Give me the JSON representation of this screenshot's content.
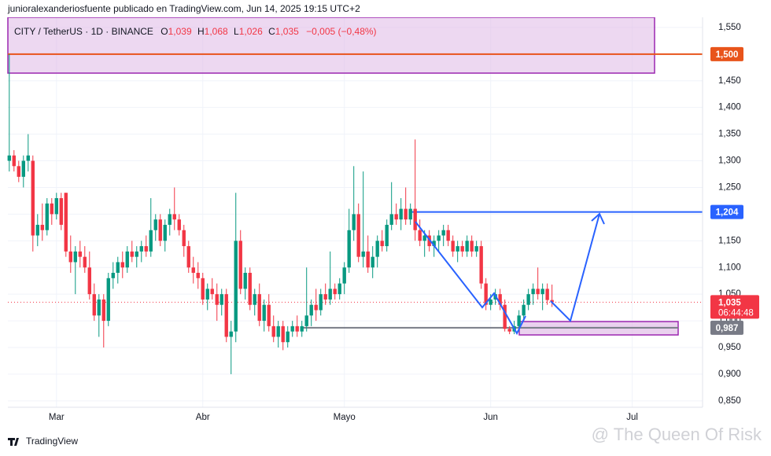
{
  "header": "junioralexanderiosfuente publicado en TradingView.com, Jun 14, 2025 19:15 UTC+2",
  "legend": {
    "symbol": "CITY / TetherUS · 1D · BINANCE",
    "o": "O",
    "o_value": "1,039",
    "h": "H",
    "h_value": "1,068",
    "l": "L",
    "l_value": "1,026",
    "c": "C",
    "c_value": "1,035",
    "change": "−0,005 (−0,48%)"
  },
  "footer": {
    "brand": "TradingView",
    "watermark": "@ The Queen Of Risk"
  },
  "chart_data": {
    "type": "candlestick",
    "up_color": "#089981",
    "down_color": "#f23645",
    "grid": true,
    "xlim": [
      -0.3,
      146.9
    ],
    "xticks": [
      {
        "value": 10,
        "label": "Mar"
      },
      {
        "value": 41,
        "label": "Abr"
      },
      {
        "value": 71,
        "label": "Mayo"
      },
      {
        "value": 102,
        "label": "Jun"
      },
      {
        "value": 132,
        "label": "Jul"
      }
    ],
    "ylim": [
      0.838,
      1.569
    ],
    "yticks": [
      {
        "value": 0.85,
        "label": "0,850"
      },
      {
        "value": 0.9,
        "label": "0,900"
      },
      {
        "value": 0.95,
        "label": "0,950"
      },
      {
        "value": 1.0,
        "label": "1,000"
      },
      {
        "value": 1.05,
        "label": "1,050"
      },
      {
        "value": 1.1,
        "label": "1,100"
      },
      {
        "value": 1.15,
        "label": "1,150"
      },
      {
        "value": 1.2,
        "label": "1,200"
      },
      {
        "value": 1.25,
        "label": "1,250"
      },
      {
        "value": 1.3,
        "label": "1,300"
      },
      {
        "value": 1.35,
        "label": "1,350"
      },
      {
        "value": 1.4,
        "label": "1,400"
      },
      {
        "value": 1.45,
        "label": "1,450"
      },
      {
        "value": 1.5,
        "label": "1,500"
      },
      {
        "value": 1.55,
        "label": "1,550"
      }
    ],
    "price_lines": [
      {
        "value": 1.5,
        "label": "1,500",
        "color": "#e8541b"
      },
      {
        "value": 1.204,
        "label": "1,204",
        "color": "#2962ff"
      },
      {
        "value": 0.987,
        "label": "0,987",
        "color": "#787b86"
      }
    ],
    "last_price": {
      "value": 1.035,
      "label": "1,035",
      "countdown": "06:44:48",
      "color": "#f23645"
    },
    "x": [
      0,
      1,
      2,
      3,
      4,
      5,
      6,
      7,
      8,
      9,
      10,
      11,
      12,
      13,
      14,
      15,
      16,
      17,
      18,
      19,
      20,
      21,
      22,
      23,
      24,
      25,
      26,
      27,
      28,
      29,
      30,
      31,
      32,
      33,
      34,
      35,
      36,
      37,
      38,
      39,
      40,
      41,
      42,
      43,
      44,
      45,
      46,
      47,
      48,
      49,
      50,
      51,
      52,
      53,
      54,
      55,
      56,
      57,
      58,
      59,
      60,
      61,
      62,
      63,
      64,
      65,
      66,
      67,
      68,
      69,
      70,
      71,
      72,
      73,
      74,
      75,
      76,
      77,
      78,
      79,
      80,
      81,
      82,
      83,
      84,
      85,
      86,
      87,
      88,
      89,
      90,
      91,
      92,
      93,
      94,
      95,
      96,
      97,
      98,
      99,
      100,
      101,
      102,
      103,
      104,
      105,
      106,
      107,
      108,
      109,
      110,
      111,
      112,
      113,
      114,
      115
    ],
    "ohlc": [
      [
        1.3,
        1.5,
        1.28,
        1.31
      ],
      [
        1.31,
        1.32,
        1.28,
        1.29
      ],
      [
        1.29,
        1.3,
        1.26,
        1.27
      ],
      [
        1.27,
        1.31,
        1.25,
        1.3
      ],
      [
        1.3,
        1.35,
        1.28,
        1.31
      ],
      [
        1.3,
        1.31,
        1.13,
        1.16
      ],
      [
        1.16,
        1.2,
        1.14,
        1.18
      ],
      [
        1.18,
        1.22,
        1.15,
        1.17
      ],
      [
        1.17,
        1.23,
        1.16,
        1.22
      ],
      [
        1.22,
        1.23,
        1.18,
        1.2
      ],
      [
        1.2,
        1.24,
        1.19,
        1.23
      ],
      [
        1.23,
        1.24,
        1.17,
        1.18
      ],
      [
        1.24,
        1.24,
        1.12,
        1.13
      ],
      [
        1.13,
        1.16,
        1.09,
        1.11
      ],
      [
        1.11,
        1.14,
        1.05,
        1.13
      ],
      [
        1.13,
        1.15,
        1.1,
        1.12
      ],
      [
        1.12,
        1.14,
        1.09,
        1.1
      ],
      [
        1.1,
        1.13,
        1.04,
        1.05
      ],
      [
        1.05,
        1.07,
        1.0,
        1.01
      ],
      [
        1.01,
        1.05,
        0.97,
        1.04
      ],
      [
        1.04,
        1.05,
        0.95,
        1.0
      ],
      [
        1.0,
        1.09,
        0.99,
        1.08
      ],
      [
        1.08,
        1.11,
        1.06,
        1.09
      ],
      [
        1.09,
        1.12,
        1.07,
        1.11
      ],
      [
        1.11,
        1.13,
        1.08,
        1.1
      ],
      [
        1.1,
        1.14,
        1.09,
        1.13
      ],
      [
        1.13,
        1.15,
        1.11,
        1.12
      ],
      [
        1.12,
        1.14,
        1.1,
        1.13
      ],
      [
        1.13,
        1.15,
        1.11,
        1.14
      ],
      [
        1.14,
        1.16,
        1.12,
        1.13
      ],
      [
        1.13,
        1.23,
        1.12,
        1.17
      ],
      [
        1.17,
        1.2,
        1.15,
        1.19
      ],
      [
        1.19,
        1.2,
        1.14,
        1.15
      ],
      [
        1.15,
        1.19,
        1.13,
        1.18
      ],
      [
        1.18,
        1.21,
        1.16,
        1.2
      ],
      [
        1.2,
        1.25,
        1.17,
        1.19
      ],
      [
        1.19,
        1.2,
        1.16,
        1.17
      ],
      [
        1.17,
        1.18,
        1.12,
        1.14
      ],
      [
        1.14,
        1.15,
        1.09,
        1.1
      ],
      [
        1.1,
        1.12,
        1.07,
        1.09
      ],
      [
        1.09,
        1.11,
        1.06,
        1.08
      ],
      [
        1.08,
        1.09,
        1.03,
        1.04
      ],
      [
        1.04,
        1.07,
        1.02,
        1.06
      ],
      [
        1.06,
        1.08,
        1.04,
        1.05
      ],
      [
        1.05,
        1.07,
        1.0,
        1.03
      ],
      [
        1.03,
        1.06,
        1.01,
        1.05
      ],
      [
        1.05,
        1.06,
        0.96,
        0.97
      ],
      [
        0.97,
        1.0,
        0.9,
        0.98
      ],
      [
        0.98,
        1.24,
        0.96,
        1.15
      ],
      [
        1.15,
        1.17,
        1.05,
        1.06
      ],
      [
        1.06,
        1.1,
        1.04,
        1.09
      ],
      [
        1.09,
        1.1,
        1.02,
        1.03
      ],
      [
        1.03,
        1.06,
        1.01,
        1.05
      ],
      [
        1.05,
        1.07,
        0.99,
        1.0
      ],
      [
        1.0,
        1.04,
        0.98,
        1.03
      ],
      [
        1.03,
        1.05,
        0.98,
        0.99
      ],
      [
        0.99,
        1.01,
        0.96,
        0.97
      ],
      [
        0.97,
        1.0,
        0.95,
        0.99
      ],
      [
        0.99,
        1.0,
        0.945,
        0.96
      ],
      [
        0.96,
        0.99,
        0.95,
        0.98
      ],
      [
        0.98,
        1.0,
        0.97,
        0.99
      ],
      [
        0.99,
        1.01,
        0.97,
        0.98
      ],
      [
        0.98,
        1.0,
        0.97,
        0.99
      ],
      [
        0.99,
        1.1,
        0.98,
        1.01
      ],
      [
        1.01,
        1.04,
        0.99,
        1.03
      ],
      [
        1.03,
        1.06,
        1.0,
        1.02
      ],
      [
        1.02,
        1.06,
        1.01,
        1.05
      ],
      [
        1.05,
        1.07,
        1.03,
        1.04
      ],
      [
        1.04,
        1.13,
        1.03,
        1.06
      ],
      [
        1.06,
        1.07,
        1.04,
        1.05
      ],
      [
        1.05,
        1.08,
        1.04,
        1.07
      ],
      [
        1.07,
        1.11,
        1.05,
        1.1
      ],
      [
        1.1,
        1.21,
        1.09,
        1.17
      ],
      [
        1.17,
        1.29,
        1.15,
        1.2
      ],
      [
        1.2,
        1.22,
        1.11,
        1.12
      ],
      [
        1.12,
        1.28,
        1.1,
        1.13
      ],
      [
        1.13,
        1.16,
        1.09,
        1.1
      ],
      [
        1.1,
        1.14,
        1.08,
        1.12
      ],
      [
        1.12,
        1.16,
        1.1,
        1.15
      ],
      [
        1.15,
        1.17,
        1.13,
        1.14
      ],
      [
        1.14,
        1.19,
        1.13,
        1.18
      ],
      [
        1.18,
        1.26,
        1.17,
        1.2
      ],
      [
        1.2,
        1.22,
        1.18,
        1.19
      ],
      [
        1.19,
        1.23,
        1.17,
        1.21
      ],
      [
        1.21,
        1.25,
        1.18,
        1.19
      ],
      [
        1.19,
        1.22,
        1.18,
        1.21
      ],
      [
        1.21,
        1.34,
        1.15,
        1.17
      ],
      [
        1.17,
        1.19,
        1.14,
        1.15
      ],
      [
        1.15,
        1.17,
        1.12,
        1.16
      ],
      [
        1.16,
        1.17,
        1.13,
        1.14
      ],
      [
        1.14,
        1.16,
        1.12,
        1.15
      ],
      [
        1.15,
        1.17,
        1.13,
        1.16
      ],
      [
        1.16,
        1.18,
        1.14,
        1.17
      ],
      [
        1.17,
        1.18,
        1.14,
        1.15
      ],
      [
        1.15,
        1.16,
        1.12,
        1.13
      ],
      [
        1.13,
        1.15,
        1.11,
        1.14
      ],
      [
        1.14,
        1.15,
        1.12,
        1.13
      ],
      [
        1.13,
        1.16,
        1.12,
        1.15
      ],
      [
        1.15,
        1.16,
        1.12,
        1.13
      ],
      [
        1.13,
        1.15,
        1.12,
        1.14
      ],
      [
        1.14,
        1.15,
        1.06,
        1.07
      ],
      [
        1.07,
        1.08,
        1.02,
        1.03
      ],
      [
        1.03,
        1.05,
        1.02,
        1.04
      ],
      [
        1.04,
        1.06,
        1.03,
        1.05
      ],
      [
        1.05,
        1.06,
        1.02,
        1.03
      ],
      [
        1.03,
        1.04,
        0.98,
        0.985
      ],
      [
        0.985,
        0.99,
        0.975,
        0.98
      ],
      [
        0.98,
        1.0,
        0.975,
        0.99
      ],
      [
        0.99,
        1.02,
        0.98,
        1.01
      ],
      [
        1.01,
        1.04,
        1.0,
        1.03
      ],
      [
        1.03,
        1.06,
        1.02,
        1.05
      ],
      [
        1.05,
        1.07,
        1.03,
        1.06
      ],
      [
        1.06,
        1.1,
        1.04,
        1.05
      ],
      [
        1.05,
        1.07,
        1.02,
        1.06
      ],
      [
        1.06,
        1.07,
        1.03,
        1.039
      ],
      [
        1.039,
        1.068,
        1.026,
        1.035
      ]
    ]
  }
}
